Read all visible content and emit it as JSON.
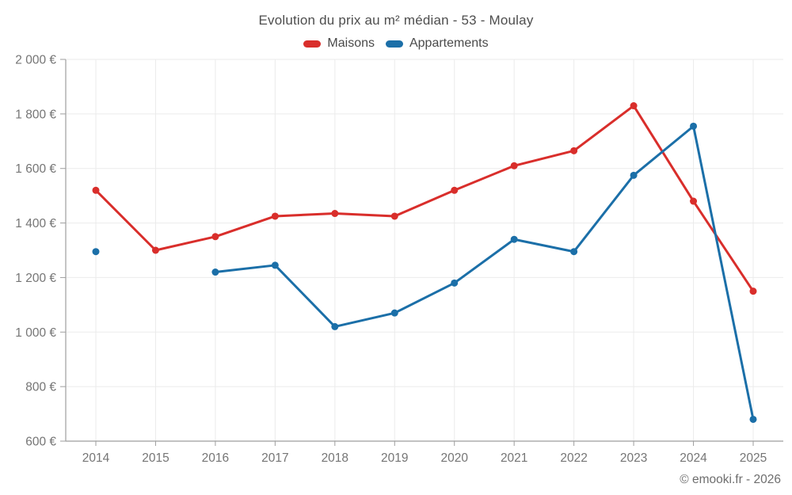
{
  "header": {
    "title": "Evolution du prix au m² médian - 53 - Moulay"
  },
  "footer": {
    "credit": "© emooki.fr - 2026"
  },
  "chart_data": {
    "type": "line",
    "title": "Evolution du prix au m² médian - 53 - Moulay",
    "x": [
      "2014",
      "2015",
      "2016",
      "2017",
      "2018",
      "2019",
      "2020",
      "2021",
      "2022",
      "2023",
      "2024",
      "2025"
    ],
    "series": [
      {
        "name": "Maisons",
        "color": "#d92e2b",
        "values": [
          1520,
          1300,
          1350,
          1425,
          1435,
          1425,
          1520,
          1610,
          1665,
          1830,
          1480,
          1150
        ]
      },
      {
        "name": "Appartements",
        "color": "#1b6fa8",
        "values": [
          1295,
          null,
          1220,
          1245,
          1020,
          1070,
          1180,
          1340,
          1295,
          1575,
          1755,
          680
        ]
      }
    ],
    "xlabel": "",
    "ylabel": "",
    "ylim": [
      600,
      2000
    ],
    "yticks": [
      {
        "value": 600,
        "label": "600 €"
      },
      {
        "value": 800,
        "label": "800 €"
      },
      {
        "value": 1000,
        "label": "1 000 €"
      },
      {
        "value": 1200,
        "label": "1 200 €"
      },
      {
        "value": 1400,
        "label": "1 400 €"
      },
      {
        "value": 1600,
        "label": "1 600 €"
      },
      {
        "value": 1800,
        "label": "1 800 €"
      },
      {
        "value": 2000,
        "label": "2 000 €"
      }
    ],
    "grid": true,
    "legend_position": "top"
  }
}
